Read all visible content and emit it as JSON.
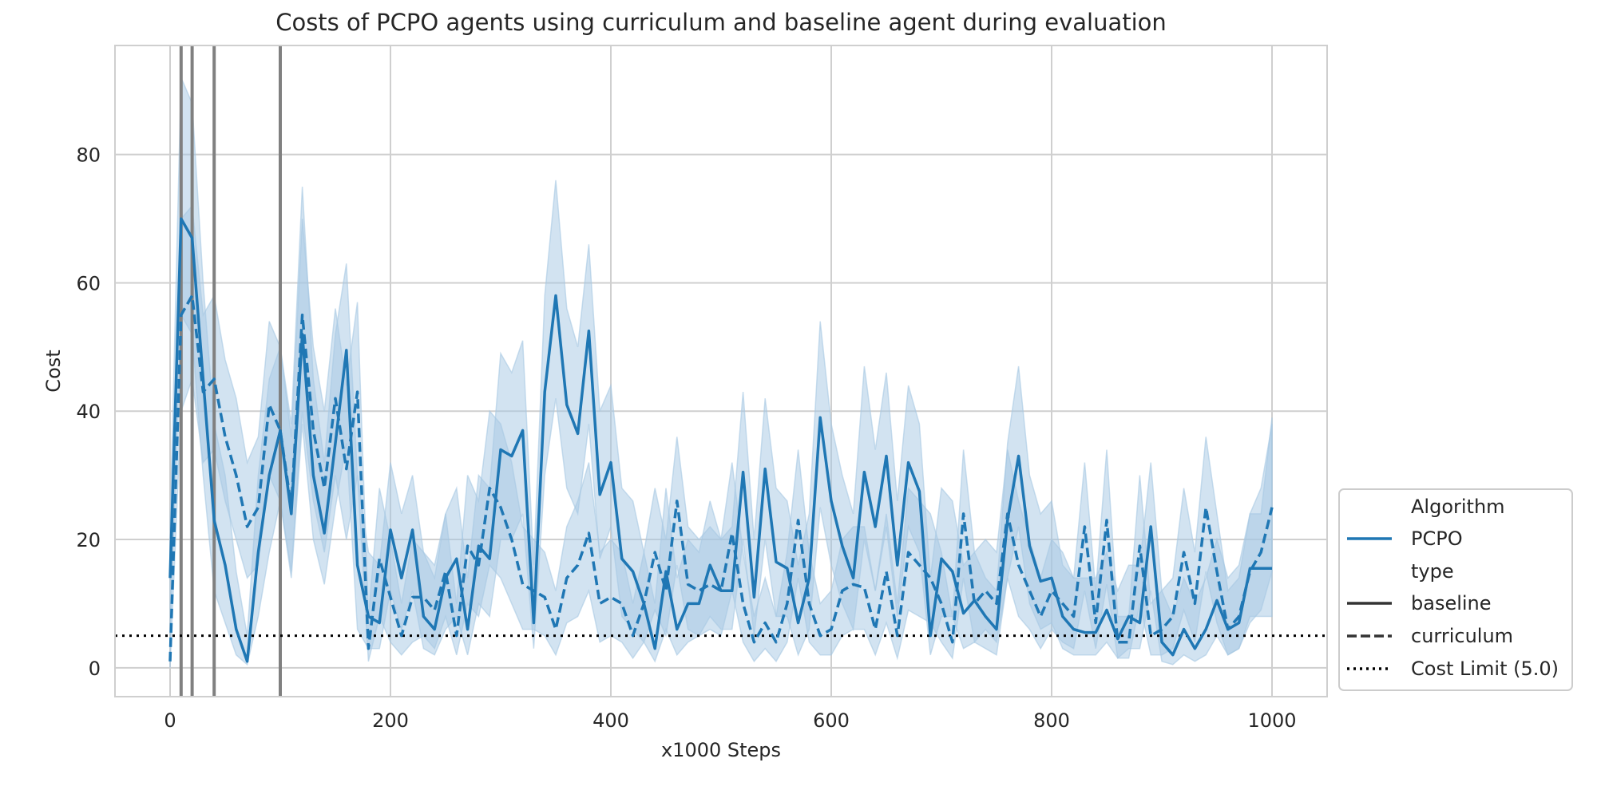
{
  "chart_data": {
    "type": "line",
    "title": "Costs of PCPO agents using curriculum and baseline agent during evaluation",
    "xlabel": "x1000 Steps",
    "ylabel": "Cost",
    "xlim": [
      -50,
      1050
    ],
    "ylim": [
      -4.5,
      97
    ],
    "xticks": [
      "0",
      "200",
      "400",
      "600",
      "800",
      "1000"
    ],
    "yticks": [
      "0",
      "20",
      "40",
      "60",
      "80"
    ],
    "grid": true,
    "legend_position": "right, outside plot, bottom",
    "colors": {
      "line": "#1f77b4",
      "band": "#a6c8e3",
      "vline": "#808080",
      "limit": "#000000",
      "grid": "#cfcfcf"
    },
    "vlines": [
      10,
      20,
      40,
      100
    ],
    "cost_limit": 5.0,
    "x": [
      0,
      10,
      20,
      30,
      40,
      50,
      60,
      70,
      80,
      90,
      100,
      110,
      120,
      130,
      140,
      150,
      160,
      170,
      180,
      190,
      200,
      210,
      220,
      230,
      240,
      250,
      260,
      270,
      280,
      290,
      300,
      310,
      320,
      330,
      340,
      350,
      360,
      370,
      380,
      390,
      400,
      410,
      420,
      430,
      440,
      450,
      460,
      470,
      480,
      490,
      500,
      510,
      520,
      530,
      540,
      550,
      560,
      570,
      580,
      590,
      600,
      610,
      620,
      630,
      640,
      650,
      660,
      670,
      680,
      690,
      700,
      710,
      720,
      730,
      740,
      750,
      760,
      770,
      780,
      790,
      800,
      810,
      820,
      830,
      840,
      850,
      860,
      870,
      880,
      890,
      900,
      910,
      920,
      930,
      940,
      950,
      960,
      970,
      980,
      990,
      1000
    ],
    "series": [
      {
        "name": "baseline",
        "dash": "solid",
        "values": [
          14,
          70,
          67,
          45,
          23,
          16,
          6,
          1,
          18,
          30,
          37,
          24,
          52,
          30,
          21,
          35,
          49.5,
          16,
          8,
          7,
          21.5,
          14,
          21.5,
          8,
          6,
          14,
          17,
          6,
          19,
          17,
          34,
          33,
          37,
          7,
          43,
          58,
          41,
          36.5,
          52.5,
          27,
          32,
          17,
          15,
          10,
          3,
          15,
          6,
          10,
          10,
          16,
          12,
          12,
          30.5,
          11,
          31,
          16.5,
          15.5,
          7,
          14,
          39,
          26,
          19,
          14,
          30.5,
          22,
          33,
          16,
          32,
          27.5,
          5,
          17,
          15,
          8.5,
          10.5,
          8,
          6,
          23,
          33,
          19,
          13.5,
          14,
          8,
          6,
          5.5,
          5.5,
          9,
          4.5,
          8,
          7,
          22,
          4,
          2,
          6,
          3,
          6,
          10.5,
          6,
          7,
          15.5,
          15.5,
          15.5
        ],
        "lower": [
          5,
          55,
          52,
          30,
          12,
          7,
          2,
          0.5,
          8,
          18,
          26,
          14,
          38,
          20,
          13,
          25,
          35,
          6,
          3,
          3,
          12,
          6,
          12,
          3,
          2,
          6,
          8,
          2,
          10,
          8,
          20,
          20,
          24,
          3,
          30,
          42,
          28,
          24,
          38,
          17,
          22,
          8,
          6,
          4,
          1,
          6,
          2,
          4,
          5,
          8,
          6,
          6,
          20,
          5,
          20,
          8,
          8,
          2,
          6,
          25,
          16,
          10,
          6,
          20,
          12,
          22,
          8,
          22,
          18,
          2,
          8,
          8,
          3,
          4,
          3,
          2,
          14,
          22,
          10,
          6,
          7,
          3,
          2,
          2,
          2,
          4,
          1.5,
          3,
          3,
          12,
          1,
          0.5,
          2,
          1,
          2,
          5,
          2,
          3,
          8,
          8,
          8
        ],
        "upper": [
          22,
          92,
          88,
          60,
          38,
          30,
          15,
          5,
          30,
          45,
          50,
          38,
          75,
          45,
          32,
          52,
          63,
          30,
          18,
          16,
          32,
          24,
          30,
          18,
          14,
          24,
          28,
          14,
          30,
          28,
          49,
          46,
          51,
          16,
          58,
          76,
          56,
          50,
          66,
          40,
          44,
          28,
          26,
          18,
          10,
          28,
          14,
          20,
          18,
          26,
          20,
          22,
          43,
          20,
          42,
          28,
          26,
          16,
          24,
          54,
          38,
          30,
          24,
          47,
          34,
          46,
          26,
          44,
          38,
          14,
          28,
          26,
          16,
          18,
          14,
          12,
          35,
          47,
          30,
          24,
          26,
          16,
          14,
          14,
          14,
          18,
          12,
          16,
          16,
          32,
          12,
          8,
          14,
          10,
          14,
          20,
          14,
          16,
          24,
          24,
          39
        ]
      },
      {
        "name": "curriculum",
        "dash": "dashed",
        "values": [
          1,
          55,
          58,
          43,
          45,
          36,
          30,
          22,
          25,
          41,
          37,
          25,
          55,
          37,
          28,
          42,
          31,
          43,
          3,
          17,
          11,
          5,
          11,
          11,
          9,
          15,
          5,
          19,
          16,
          28,
          25,
          20,
          13,
          12,
          11,
          6,
          14,
          16,
          21,
          10,
          11,
          10,
          5,
          10,
          18,
          12,
          26,
          13,
          12,
          13,
          12,
          21,
          10,
          4,
          7,
          4,
          10,
          23,
          10,
          5,
          6,
          12,
          13,
          12.5,
          6,
          15,
          5,
          18,
          16,
          14,
          10,
          4,
          24,
          10,
          12,
          10,
          24,
          16,
          12,
          8,
          12,
          10,
          8,
          22,
          7,
          23,
          4,
          4,
          19,
          5,
          6,
          8,
          18,
          10,
          25,
          15,
          6,
          8,
          15,
          18,
          25
        ],
        "lower": [
          0,
          40,
          45,
          32,
          34,
          26,
          20,
          14,
          16,
          30,
          26,
          15,
          40,
          26,
          18,
          30,
          20,
          30,
          1,
          8,
          4,
          2,
          4,
          5,
          3,
          8,
          2,
          10,
          8,
          16,
          14,
          10,
          6,
          6,
          5,
          2,
          7,
          8,
          12,
          4,
          5,
          4,
          1.5,
          4,
          9,
          5,
          16,
          6,
          5,
          6,
          5,
          12,
          4,
          1,
          3,
          1,
          4,
          14,
          4,
          2,
          2,
          5,
          6,
          6,
          2,
          7,
          1.5,
          9,
          8,
          7,
          4,
          1.5,
          14,
          4,
          6,
          4,
          14,
          8,
          6,
          3,
          6,
          4,
          3,
          12,
          3,
          13,
          1.5,
          1.5,
          10,
          2,
          2,
          3,
          9,
          4,
          15,
          7,
          2,
          3,
          7,
          9,
          15
        ],
        "upper": [
          3,
          70,
          72,
          55,
          58,
          48,
          42,
          32,
          36,
          54,
          50,
          36,
          70,
          50,
          40,
          56,
          44,
          57,
          8,
          28,
          20,
          10,
          20,
          18,
          16,
          24,
          10,
          30,
          26,
          40,
          38,
          32,
          22,
          20,
          18,
          12,
          22,
          26,
          32,
          18,
          20,
          18,
          10,
          18,
          28,
          20,
          36,
          22,
          20,
          22,
          20,
          32,
          18,
          8,
          14,
          8,
          18,
          34,
          18,
          10,
          12,
          20,
          22,
          22,
          12,
          24,
          10,
          28,
          26,
          24,
          18,
          8,
          34,
          18,
          20,
          18,
          34,
          26,
          20,
          14,
          20,
          18,
          14,
          32,
          12,
          34,
          8,
          8,
          30,
          10,
          12,
          14,
          28,
          18,
          36,
          24,
          12,
          14,
          24,
          28,
          38
        ]
      }
    ],
    "legend": {
      "title1": "Algorithm",
      "item1": "PCPO",
      "title2": "type",
      "item2": "baseline",
      "item3": "curriculum",
      "item4": "Cost Limit (5.0)"
    }
  }
}
